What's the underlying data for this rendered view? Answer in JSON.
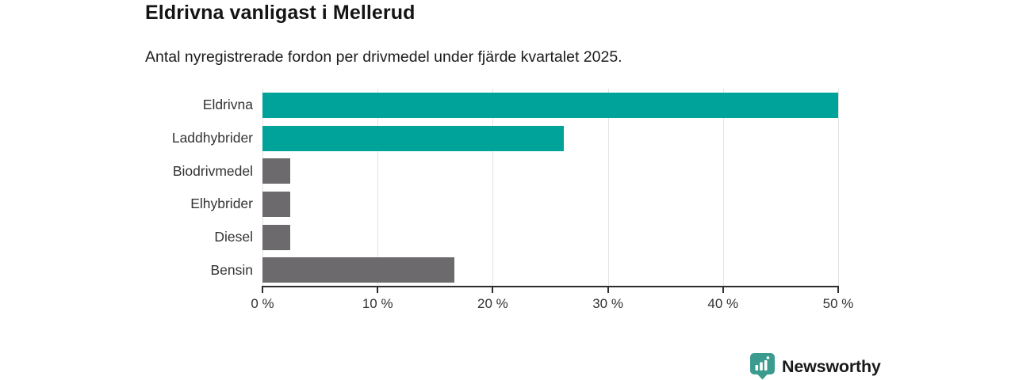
{
  "chart_data": {
    "type": "bar",
    "orientation": "horizontal",
    "title": "Eldrivna vanligast i Mellerud",
    "subtitle": "Antal nyregistrerade fordon per drivmedel under fjärde kvartalet 2025.",
    "categories": [
      "Eldrivna",
      "Laddhybrider",
      "Biodrivmedel",
      "Elhybrider",
      "Diesel",
      "Bensin"
    ],
    "values": [
      50.0,
      26.2,
      2.4,
      2.4,
      2.4,
      16.7
    ],
    "unit": "%",
    "xlabel": "",
    "ylabel": "",
    "xlim": [
      0,
      50
    ],
    "xticks": [
      0,
      10,
      20,
      30,
      40,
      50
    ],
    "xtick_labels": [
      "0 %",
      "10 %",
      "20 %",
      "30 %",
      "40 %",
      "50 %"
    ],
    "grid": "vertical",
    "legend": "none",
    "bar_colors": [
      "#00a39a",
      "#00a39a",
      "#6d6a6d",
      "#6d6a6d",
      "#6d6a6d",
      "#6d6a6d"
    ],
    "colors": {
      "highlight": "#00a39a",
      "default_gray": "#6d6a6d",
      "gridline": "#e3e3e3",
      "axis": "#2d2d2d",
      "text": "#333333"
    }
  },
  "branding": {
    "logo_text": "Newsworthy",
    "logo_color": "#3a9b8e",
    "logo_icon": "newsworthy-pin-barchart-icon"
  }
}
